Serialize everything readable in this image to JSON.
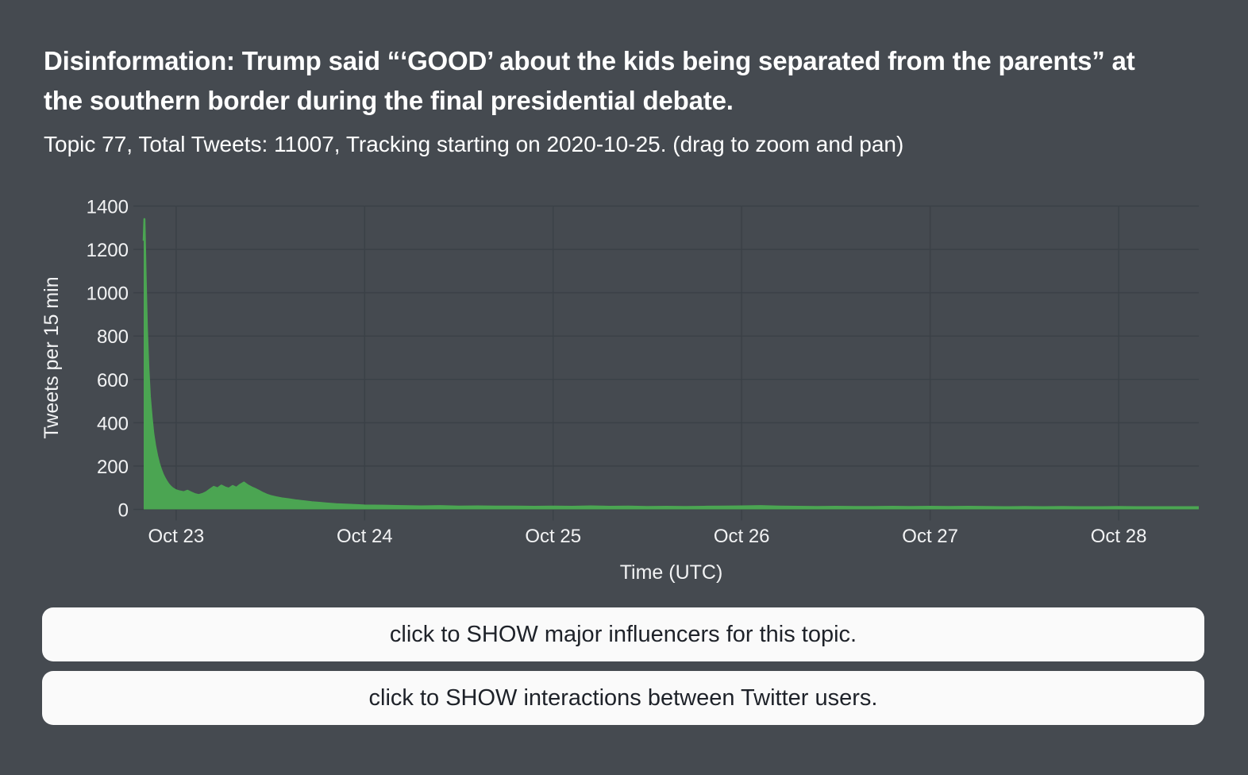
{
  "header": {
    "title": "Disinformation: Trump said “‘GOOD’ about the kids being separated from the parents” at the southern border during the final presidential debate.",
    "subtitle": "Topic 77, Total Tweets: 11007, Tracking starting on 2020-10-25. (drag to zoom and pan)"
  },
  "topic": {
    "topic_number": "77",
    "total_tweets": "11007",
    "tracking_start": "2020-10-25"
  },
  "buttons": [
    {
      "label": "click to SHOW major influencers for this topic."
    },
    {
      "label": "click to SHOW interactions between Twitter users."
    }
  ],
  "colors": {
    "background": "#454a50",
    "grid": "#3b4147",
    "axis_text": "#f2f3f4",
    "area_fill": "#4ba552",
    "button_bg": "#fafafa",
    "button_text": "#1e2229"
  },
  "chart_data": {
    "type": "area",
    "title": "",
    "xlabel": "Time (UTC)",
    "ylabel": "Tweets per 15 min",
    "series_name": "tweets-per-15-min",
    "legend": "none",
    "grid": "on",
    "x_tick_labels": [
      "Oct 23",
      "Oct 24",
      "Oct 25",
      "Oct 26",
      "Oct 27",
      "Oct 28"
    ],
    "x_tick_days": [
      0,
      1,
      2,
      3,
      4,
      5
    ],
    "y_ticks": [
      0,
      200,
      400,
      600,
      800,
      1000,
      1200,
      1400
    ],
    "ylim": [
      0,
      1400
    ],
    "xlim_days": [
      -0.172,
      5.425
    ],
    "peak_value": 1340,
    "points": [
      [
        -0.172,
        1240
      ],
      [
        -0.168,
        1340
      ],
      [
        -0.162,
        1080
      ],
      [
        -0.155,
        840
      ],
      [
        -0.147,
        650
      ],
      [
        -0.139,
        520
      ],
      [
        -0.13,
        425
      ],
      [
        -0.121,
        350
      ],
      [
        -0.111,
        292
      ],
      [
        -0.101,
        248
      ],
      [
        -0.091,
        214
      ],
      [
        -0.081,
        186
      ],
      [
        -0.071,
        163
      ],
      [
        -0.061,
        145
      ],
      [
        -0.051,
        130
      ],
      [
        -0.041,
        117
      ],
      [
        -0.031,
        107
      ],
      [
        -0.021,
        99
      ],
      [
        -0.011,
        93
      ],
      [
        -0.001,
        88
      ],
      [
        0.02,
        83
      ],
      [
        0.04,
        79
      ],
      [
        0.06,
        86
      ],
      [
        0.08,
        78
      ],
      [
        0.1,
        70
      ],
      [
        0.12,
        66
      ],
      [
        0.14,
        71
      ],
      [
        0.16,
        79
      ],
      [
        0.18,
        92
      ],
      [
        0.2,
        104
      ],
      [
        0.22,
        97
      ],
      [
        0.24,
        110
      ],
      [
        0.26,
        101
      ],
      [
        0.28,
        96
      ],
      [
        0.3,
        108
      ],
      [
        0.32,
        100
      ],
      [
        0.34,
        114
      ],
      [
        0.36,
        124
      ],
      [
        0.38,
        111
      ],
      [
        0.4,
        102
      ],
      [
        0.42,
        94
      ],
      [
        0.44,
        85
      ],
      [
        0.46,
        76
      ],
      [
        0.48,
        68
      ],
      [
        0.5,
        62
      ],
      [
        0.53,
        56
      ],
      [
        0.56,
        51
      ],
      [
        0.6,
        46
      ],
      [
        0.64,
        41
      ],
      [
        0.68,
        37
      ],
      [
        0.72,
        33
      ],
      [
        0.76,
        30
      ],
      [
        0.8,
        27
      ],
      [
        0.85,
        24
      ],
      [
        0.9,
        22
      ],
      [
        0.95,
        20
      ],
      [
        1.0,
        18
      ],
      [
        1.1,
        17
      ],
      [
        1.2,
        15
      ],
      [
        1.3,
        14
      ],
      [
        1.4,
        15
      ],
      [
        1.5,
        13
      ],
      [
        1.6,
        14
      ],
      [
        1.7,
        13
      ],
      [
        1.8,
        13
      ],
      [
        1.9,
        12
      ],
      [
        2.0,
        13
      ],
      [
        2.1,
        12
      ],
      [
        2.2,
        14
      ],
      [
        2.3,
        12
      ],
      [
        2.4,
        13
      ],
      [
        2.5,
        11
      ],
      [
        2.6,
        12
      ],
      [
        2.7,
        11
      ],
      [
        2.8,
        12
      ],
      [
        2.9,
        13
      ],
      [
        3.0,
        14
      ],
      [
        3.1,
        15
      ],
      [
        3.2,
        13
      ],
      [
        3.3,
        12
      ],
      [
        3.4,
        11
      ],
      [
        3.5,
        12
      ],
      [
        3.6,
        11
      ],
      [
        3.7,
        11
      ],
      [
        3.8,
        12
      ],
      [
        3.9,
        11
      ],
      [
        4.0,
        12
      ],
      [
        4.1,
        11
      ],
      [
        4.2,
        12
      ],
      [
        4.3,
        11
      ],
      [
        4.4,
        10
      ],
      [
        4.5,
        11
      ],
      [
        4.6,
        10
      ],
      [
        4.7,
        11
      ],
      [
        4.8,
        10
      ],
      [
        4.9,
        10
      ],
      [
        5.0,
        11
      ],
      [
        5.1,
        10
      ],
      [
        5.2,
        10
      ],
      [
        5.3,
        10
      ],
      [
        5.425,
        10
      ]
    ]
  }
}
